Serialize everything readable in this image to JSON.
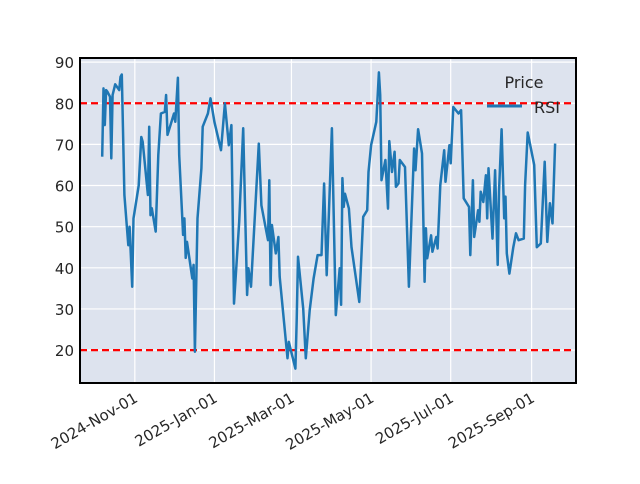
{
  "chart_data": {
    "type": "line",
    "title": "",
    "xlabel": "",
    "ylabel": "",
    "xlim": [
      "2024-09-20",
      "2025-10-05"
    ],
    "ylim": [
      12,
      91
    ],
    "grid": true,
    "background": "#dde3ee",
    "x_ticks": [
      {
        "date": "2024-11-01",
        "label": "2024-Nov-01"
      },
      {
        "date": "2025-01-01",
        "label": "2025-Jan-01"
      },
      {
        "date": "2025-03-01",
        "label": "2025-Mar-01"
      },
      {
        "date": "2025-05-01",
        "label": "2025-May-01"
      },
      {
        "date": "2025-07-01",
        "label": "2025-Jul-01"
      },
      {
        "date": "2025-09-01",
        "label": "2025-Sep-01"
      }
    ],
    "y_ticks": [
      20,
      30,
      40,
      50,
      60,
      70,
      80,
      90
    ],
    "legend": {
      "title": "Price",
      "placement": "top-right",
      "entries": [
        "RSI"
      ]
    },
    "reference_lines": [
      {
        "y": 80,
        "color": "#ff0000",
        "style": "dashed"
      },
      {
        "y": 20,
        "color": "#ff0000",
        "style": "dashed"
      }
    ],
    "series": [
      {
        "name": "RSI",
        "color": "#1f77b4",
        "x": [
          "2024-10-07",
          "2024-10-08",
          "2024-10-09",
          "2024-10-10",
          "2024-10-11",
          "2024-10-13",
          "2024-10-14",
          "2024-10-15",
          "2024-10-17",
          "2024-10-20",
          "2024-10-21",
          "2024-10-22",
          "2024-10-24",
          "2024-10-27",
          "2024-10-28",
          "2024-10-30",
          "2024-10-31",
          "2024-11-04",
          "2024-11-06",
          "2024-11-07",
          "2024-11-11",
          "2024-11-12",
          "2024-11-13",
          "2024-11-14",
          "2024-11-17",
          "2024-11-19",
          "2024-11-21",
          "2024-11-24",
          "2024-11-25",
          "2024-11-26",
          "2024-12-01",
          "2024-12-02",
          "2024-12-04",
          "2024-12-05",
          "2024-12-08",
          "2024-12-09",
          "2024-12-10",
          "2024-12-11",
          "2024-12-15",
          "2024-12-16",
          "2024-12-17",
          "2024-12-19",
          "2024-12-22",
          "2024-12-23",
          "2024-12-27",
          "2024-12-29",
          "2025-01-01",
          "2025-01-06",
          "2025-01-09",
          "2025-01-12",
          "2025-01-14",
          "2025-01-16",
          "2025-01-20",
          "2025-01-23",
          "2025-01-26",
          "2025-01-27",
          "2025-01-29",
          "2025-02-04",
          "2025-02-06",
          "2025-02-11",
          "2025-02-12",
          "2025-02-13",
          "2025-02-14",
          "2025-02-17",
          "2025-02-19",
          "2025-02-20",
          "2025-02-26",
          "2025-02-27",
          "2025-03-04",
          "2025-03-05",
          "2025-03-06",
          "2025-03-10",
          "2025-03-12",
          "2025-03-15",
          "2025-03-18",
          "2025-03-21",
          "2025-03-24",
          "2025-03-26",
          "2025-03-28",
          "2025-04-01",
          "2025-04-04",
          "2025-04-07",
          "2025-04-08",
          "2025-04-09",
          "2025-04-10",
          "2025-04-11",
          "2025-04-14",
          "2025-04-16",
          "2025-04-22",
          "2025-04-25",
          "2025-04-28",
          "2025-04-29",
          "2025-05-01",
          "2025-05-05",
          "2025-05-07",
          "2025-05-08",
          "2025-05-09",
          "2025-05-12",
          "2025-05-14",
          "2025-05-15",
          "2025-05-17",
          "2025-05-19",
          "2025-05-20",
          "2025-05-22",
          "2025-05-23",
          "2025-05-27",
          "2025-05-30",
          "2025-06-03",
          "2025-06-04",
          "2025-06-06",
          "2025-06-09",
          "2025-06-11",
          "2025-06-12",
          "2025-06-13",
          "2025-06-16",
          "2025-06-17",
          "2025-06-20",
          "2025-06-21",
          "2025-06-23",
          "2025-06-26",
          "2025-06-27",
          "2025-06-30",
          "2025-07-01",
          "2025-07-03",
          "2025-07-07",
          "2025-07-09",
          "2025-07-11",
          "2025-07-15",
          "2025-07-16",
          "2025-07-18",
          "2025-07-19",
          "2025-07-22",
          "2025-07-23",
          "2025-07-24",
          "2025-07-26",
          "2025-07-28",
          "2025-07-29",
          "2025-07-30",
          "2025-08-02",
          "2025-08-04",
          "2025-08-06",
          "2025-08-07",
          "2025-08-09",
          "2025-08-11",
          "2025-08-12",
          "2025-08-13",
          "2025-08-15",
          "2025-08-18",
          "2025-08-20",
          "2025-08-22",
          "2025-08-26",
          "2025-08-27",
          "2025-08-29",
          "2025-09-03",
          "2025-09-05",
          "2025-09-08",
          "2025-09-11",
          "2025-09-13",
          "2025-09-15",
          "2025-09-17",
          "2025-09-19"
        ],
        "values": [
          67,
          83.6,
          74.7,
          83.2,
          82.8,
          81.6,
          66.6,
          82,
          84.6,
          83.2,
          86.4,
          87,
          57.7,
          45.5,
          50,
          35.4,
          52,
          60,
          71.8,
          70.6,
          57.7,
          74.3,
          52.8,
          54.5,
          48.8,
          67.4,
          77.5,
          77.9,
          82,
          72.3,
          77.5,
          75.5,
          86.2,
          67.4,
          48,
          52,
          42.4,
          46.3,
          37.4,
          40.7,
          19.6,
          52,
          64.2,
          74.3,
          77.5,
          81.2,
          75.5,
          68.6,
          80,
          69.8,
          74.7,
          31.3,
          51.2,
          73.9,
          33.4,
          39.9,
          35.4,
          70.2,
          55.2,
          46.7,
          61.3,
          35.8,
          50.4,
          43.5,
          47.5,
          37.8,
          18,
          22,
          15.5,
          27.3,
          42.7,
          30.1,
          18,
          29.7,
          37.4,
          43.1,
          43.1,
          60.5,
          38.2,
          73.9,
          28.5,
          39.9,
          31,
          61.8,
          54.8,
          58,
          54.4,
          45,
          31.7,
          52.4,
          54,
          63.3,
          69.8,
          75.5,
          87.5,
          82,
          61.3,
          66.2,
          54.4,
          70.8,
          63.3,
          68.2,
          59.7,
          60.5,
          66.2,
          64.5,
          35.4,
          69,
          63.7,
          73.7,
          67.8,
          36.6,
          49.6,
          42.3,
          47.9,
          43.9,
          47.5,
          44.7,
          60.1,
          68.6,
          60.9,
          69.8,
          65.4,
          79.1,
          77.5,
          78.3,
          56.9,
          54.8,
          43.1,
          61.3,
          47.5,
          54,
          51.2,
          58.5,
          56,
          62.5,
          52,
          64.2,
          47.1,
          63.7,
          40.7,
          58.5,
          73.7,
          52,
          57.3,
          43.5,
          38.6,
          45,
          48.4,
          46.7,
          47.1,
          60.1,
          72.9,
          65,
          45,
          45.9,
          65.8,
          46.3,
          55.7,
          50.8,
          70.2
        ]
      }
    ]
  }
}
